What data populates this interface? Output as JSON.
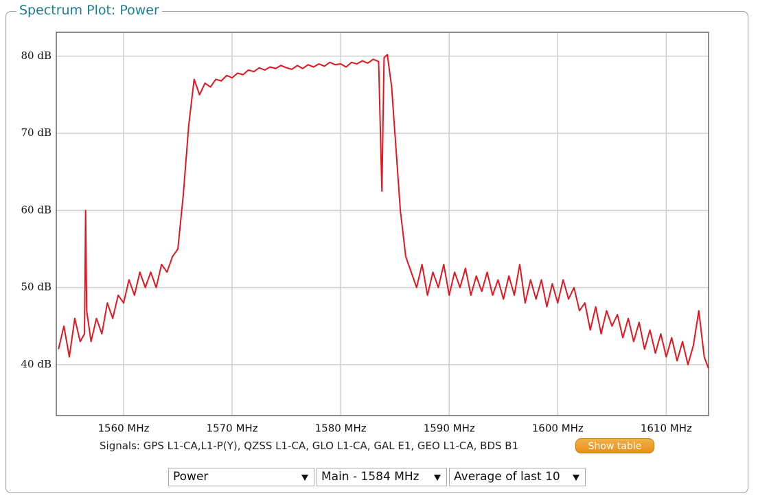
{
  "panel": {
    "title": "Spectrum Plot: Power",
    "signals": "Signals: GPS L1-CA,L1-P(Y), QZSS L1-CA, GLO L1-CA, GAL E1, GEO L1-CA, BDS B1",
    "button": "Show table",
    "selects": [
      "Power",
      "Main - 1584 MHz",
      "Average of last 10"
    ]
  },
  "chart_data": {
    "type": "line",
    "color": "#e8141c",
    "grid": true,
    "xlim": [
      1553.8,
      1613.9
    ],
    "ylim": [
      33.4,
      83.1
    ],
    "xticks": [
      {
        "value": 1560,
        "label": "1560 MHz"
      },
      {
        "value": 1570,
        "label": "1570 MHz"
      },
      {
        "value": 1580,
        "label": "1580 MHz"
      },
      {
        "value": 1590,
        "label": "1590 MHz"
      },
      {
        "value": 1600,
        "label": "1600 MHz"
      },
      {
        "value": 1610,
        "label": "1610 MHz"
      }
    ],
    "yticks": [
      {
        "value": 40,
        "label": "40 dB"
      },
      {
        "value": 50,
        "label": "50 dB"
      },
      {
        "value": 60,
        "label": "60 dB"
      },
      {
        "value": 70,
        "label": "70 dB"
      },
      {
        "value": 80,
        "label": "80 dB"
      }
    ],
    "x": [
      1554,
      1554.5,
      1555,
      1555.5,
      1556,
      1556.4,
      1556.5,
      1556.6,
      1557,
      1557.5,
      1558,
      1558.5,
      1559,
      1559.5,
      1560,
      1560.5,
      1561,
      1561.5,
      1562,
      1562.5,
      1563,
      1563.5,
      1564,
      1564.5,
      1565,
      1565.5,
      1566,
      1566.5,
      1567,
      1567.5,
      1568,
      1568.5,
      1569,
      1569.5,
      1570,
      1570.5,
      1571,
      1571.5,
      1572,
      1572.5,
      1573,
      1573.5,
      1574,
      1574.5,
      1575,
      1575.5,
      1576,
      1576.5,
      1577,
      1577.5,
      1578,
      1578.5,
      1579,
      1579.5,
      1580,
      1580.5,
      1581,
      1581.5,
      1582,
      1582.5,
      1583,
      1583.5,
      1583.8,
      1584,
      1584.3,
      1584.7,
      1585,
      1585.5,
      1586,
      1586.5,
      1587,
      1587.5,
      1588,
      1588.5,
      1589,
      1589.5,
      1590,
      1590.5,
      1591,
      1591.5,
      1592,
      1592.5,
      1593,
      1593.5,
      1594,
      1594.5,
      1595,
      1595.5,
      1596,
      1596.5,
      1597,
      1597.5,
      1598,
      1598.5,
      1599,
      1599.5,
      1600,
      1600.5,
      1601,
      1601.5,
      1602,
      1602.5,
      1603,
      1603.5,
      1604,
      1604.5,
      1605,
      1605.5,
      1606,
      1606.5,
      1607,
      1607.5,
      1608,
      1608.5,
      1609,
      1609.5,
      1610,
      1610.5,
      1611,
      1611.5,
      1612,
      1612.5,
      1613,
      1613.5,
      1613.9
    ],
    "values": [
      42,
      45,
      41,
      46,
      43,
      44,
      60,
      47,
      43,
      46,
      44,
      48,
      46,
      49,
      48,
      51,
      49,
      52,
      50,
      52,
      50,
      53,
      52,
      54,
      55,
      62,
      71,
      77,
      75,
      76.5,
      76,
      77,
      76.8,
      77.5,
      77.2,
      77.8,
      77.6,
      78.2,
      78,
      78.5,
      78.2,
      78.6,
      78.4,
      78.8,
      78.5,
      78.3,
      78.8,
      78.4,
      78.9,
      78.6,
      79,
      78.7,
      79.2,
      78.9,
      79,
      78.6,
      79.2,
      79,
      79.4,
      79.1,
      79.6,
      79.3,
      62.5,
      79.8,
      80.2,
      76,
      70,
      60,
      54,
      52,
      50,
      53,
      49,
      52,
      50,
      53,
      49,
      52,
      50,
      52.5,
      49,
      51.5,
      49.5,
      52,
      49,
      51,
      48.5,
      51.5,
      49,
      53,
      48,
      51,
      48.5,
      51,
      47.5,
      50.5,
      48,
      51,
      48.5,
      50,
      47,
      48,
      44.5,
      47.5,
      44,
      47,
      45,
      46.5,
      43.5,
      46,
      43,
      45.5,
      42,
      44.5,
      41.5,
      44,
      41,
      43.5,
      40.5,
      43,
      40,
      42.5,
      47,
      41,
      39.5
    ]
  }
}
